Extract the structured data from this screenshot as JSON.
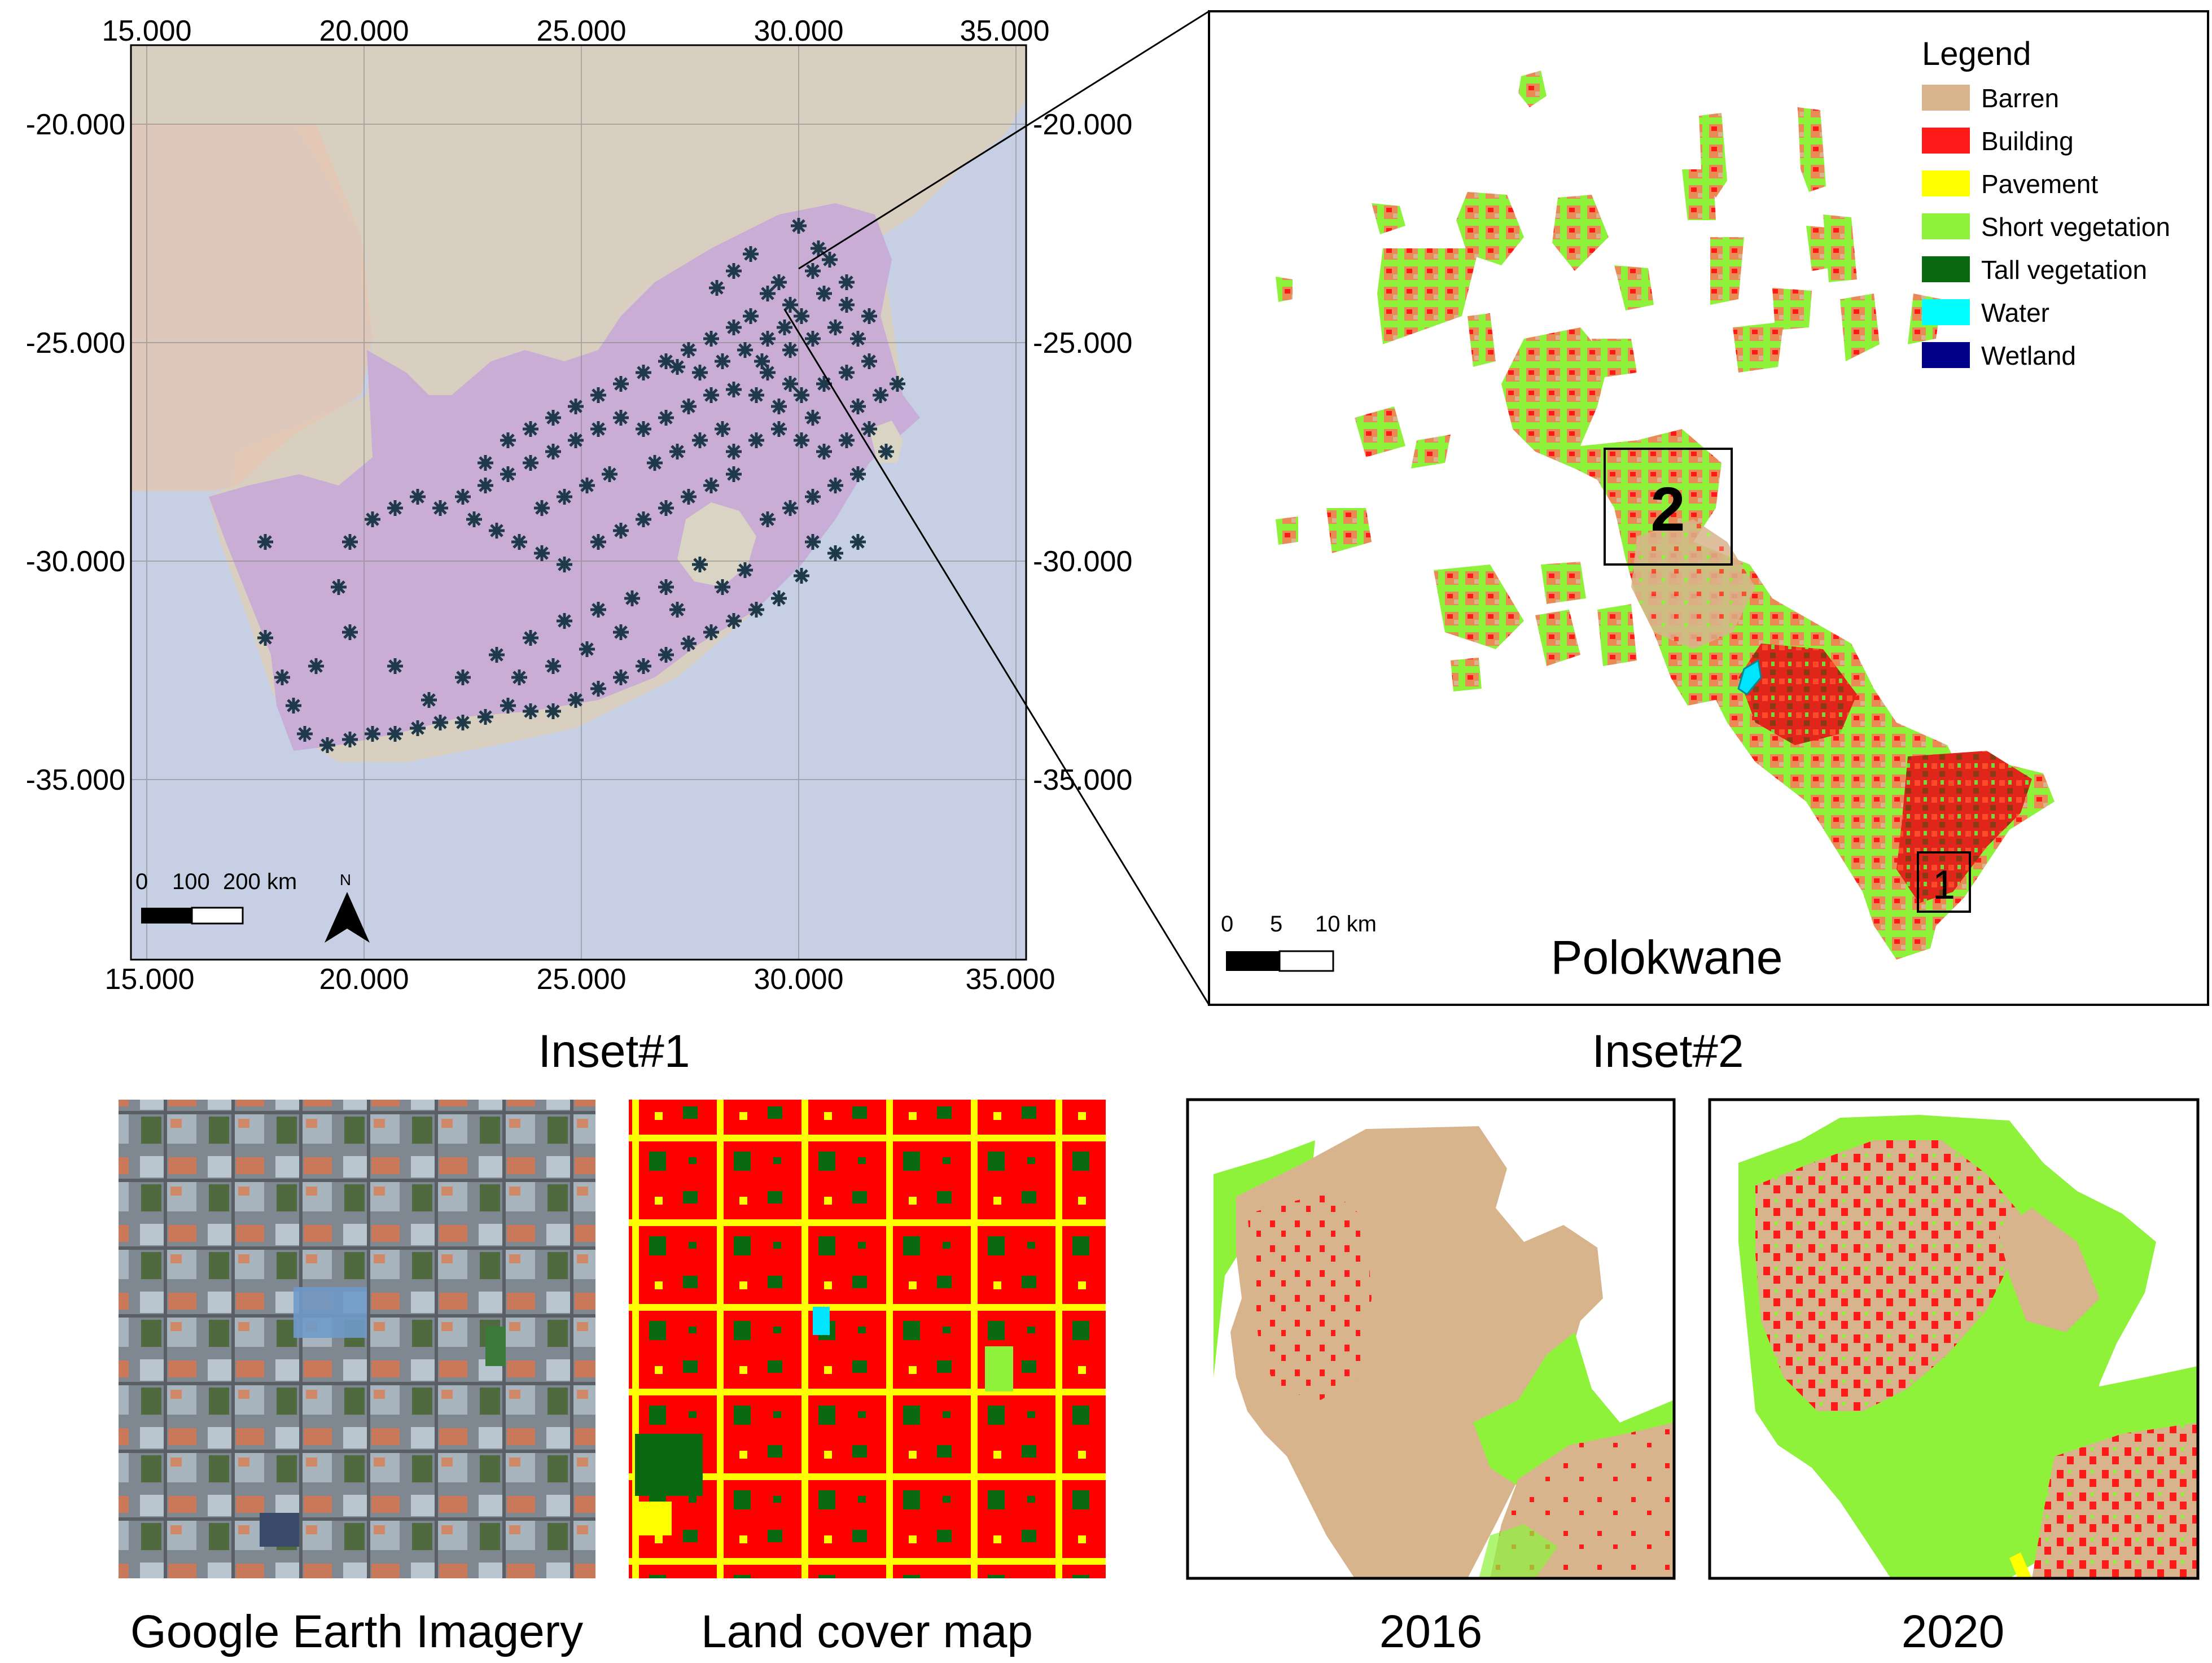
{
  "main_map": {
    "x_ticks_top": [
      "15.000",
      "20.000",
      "25.000",
      "30.000",
      "35.000"
    ],
    "x_ticks_bottom": [
      "15.000",
      "20.000",
      "25.000",
      "30.000",
      "35.000"
    ],
    "y_ticks_left": [
      "-20.000",
      "-25.000",
      "-30.000",
      "-35.000"
    ],
    "y_ticks_right": [
      "-20.000",
      "-25.000",
      "-30.000",
      "-35.000"
    ],
    "scale_bar": {
      "l0": "0",
      "l1": "100",
      "l2": "200 km"
    },
    "north_label": "N",
    "colors": {
      "land": "#d9cfc0",
      "region": "#c7a8d6",
      "ocean": "#c6cfe4",
      "marker": "#1e3a4a"
    }
  },
  "detail_map": {
    "title": "Polokwane",
    "box_labels": [
      "2",
      "1"
    ],
    "scale_bar": {
      "l0": "0",
      "l1": "5",
      "l2": "10 km"
    },
    "legend": {
      "title": "Legend",
      "items": [
        {
          "label": "Barren",
          "color": "#d8b48c"
        },
        {
          "label": "Building",
          "color": "#ff1a1a"
        },
        {
          "label": "Pavement",
          "color": "#ffff00"
        },
        {
          "label": "Short vegetation",
          "color": "#8ff23a"
        },
        {
          "label": "Tall vegetation",
          "color": "#0a6a12"
        },
        {
          "label": "Water",
          "color": "#00ffff"
        },
        {
          "label": "Wetland",
          "color": "#00008b"
        }
      ]
    }
  },
  "inset1": {
    "title": "Inset#1",
    "panel_captions": [
      "Google Earth Imagery",
      "Land cover map"
    ]
  },
  "inset2": {
    "title": "Inset#2",
    "panel_captions": [
      "2016",
      "2020"
    ]
  }
}
